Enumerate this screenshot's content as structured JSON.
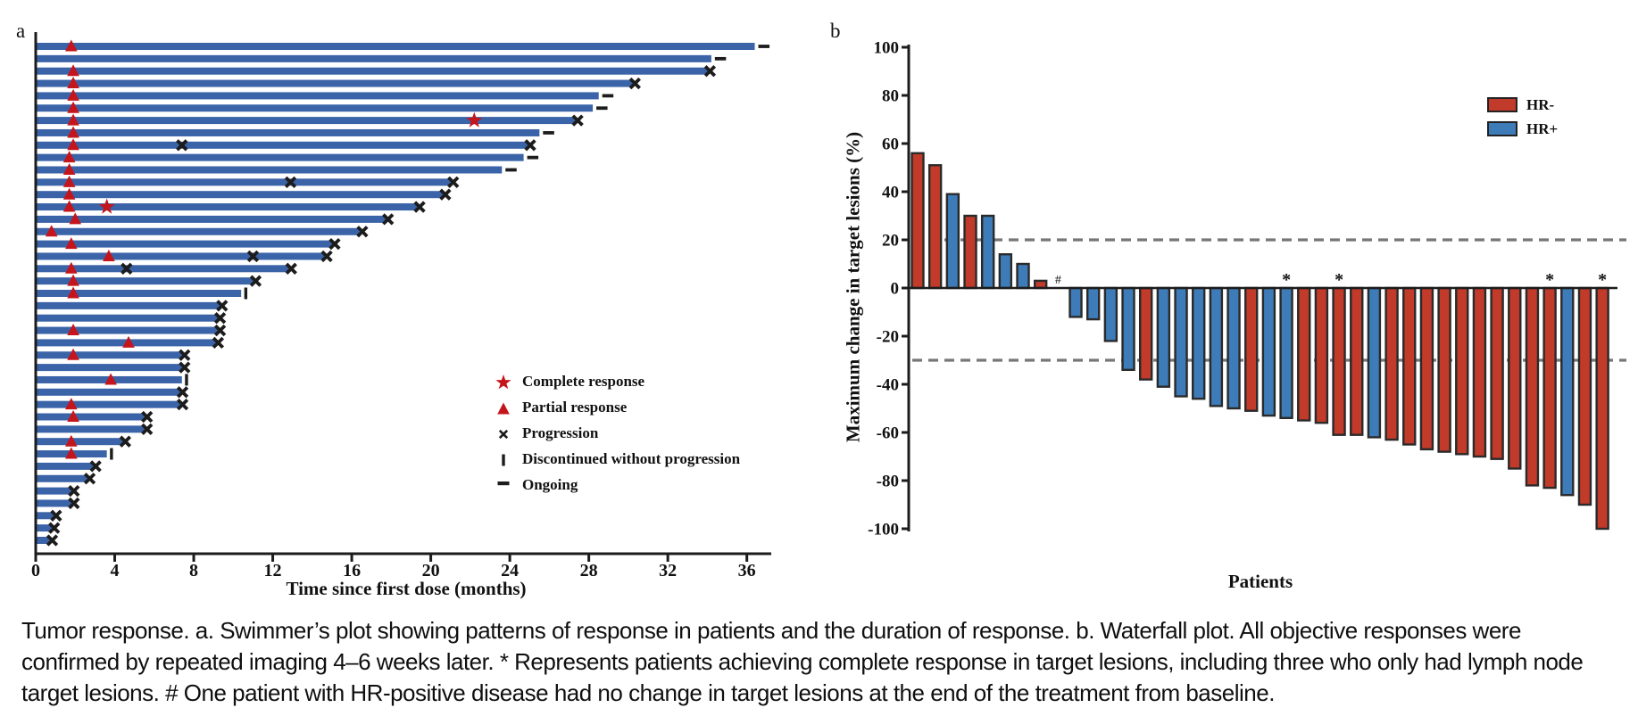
{
  "figure": {
    "panel_a_label": "a",
    "panel_b_label": "b"
  },
  "caption": "Tumor response. a. Swimmer’s plot showing patterns of response in patients and the duration of response. b. Waterfall plot. All objective responses were confirmed by repeated imaging 4–6 weeks later. * Represents patients achieving complete response in target lesions, including three who only had lymph node target lesions. # One patient with HR-positive disease had no change in target lesions at the end of the treatment from baseline.",
  "colors": {
    "swimmer_bar_blue": "#3a63a8",
    "waterfall_red": "#c13a2a",
    "waterfall_blue": "#3d7cb8",
    "marker_red": "#c4151c",
    "axis_black": "#1c1c1c",
    "bar_outline": "#2a2a2a",
    "dash_gray": "#777777"
  },
  "chart_data": [
    {
      "type": "bar",
      "subtype": "swimmer",
      "panel": "a",
      "xlabel": "Time since first dose (months)",
      "xlim": [
        0,
        37.2
      ],
      "xticks": [
        0,
        4,
        8,
        12,
        16,
        20,
        24,
        28,
        32,
        36
      ],
      "legend": [
        {
          "marker": "star",
          "label": "Complete response"
        },
        {
          "marker": "triangle",
          "label": "Partial response"
        },
        {
          "marker": "cross",
          "label": "Progression"
        },
        {
          "marker": "vbar",
          "label": "Discontinued without progression"
        },
        {
          "marker": "dash",
          "label": "Ongoing"
        }
      ],
      "patients": [
        {
          "duration_months": 36.4,
          "end_marker": "ongoing",
          "partial_response_month": 1.8
        },
        {
          "duration_months": 34.2,
          "end_marker": "ongoing"
        },
        {
          "duration_months": 34.0,
          "end_marker": "progression",
          "partial_response_month": 1.9
        },
        {
          "duration_months": 30.2,
          "end_marker": "progression",
          "partial_response_month": 1.9
        },
        {
          "duration_months": 28.5,
          "end_marker": "ongoing",
          "partial_response_month": 1.9
        },
        {
          "duration_months": 28.2,
          "end_marker": "ongoing",
          "partial_response_month": 1.9
        },
        {
          "duration_months": 27.3,
          "end_marker": "progression",
          "partial_response_month": 1.9,
          "complete_response_month": 22.2
        },
        {
          "duration_months": 25.5,
          "end_marker": "ongoing",
          "partial_response_month": 1.9
        },
        {
          "duration_months": 24.9,
          "end_marker": "progression",
          "partial_response_month": 1.9,
          "progression_marks": [
            7.4
          ]
        },
        {
          "duration_months": 24.7,
          "end_marker": "ongoing",
          "partial_response_month": 1.7
        },
        {
          "duration_months": 23.6,
          "end_marker": "ongoing",
          "partial_response_month": 1.7
        },
        {
          "duration_months": 21.0,
          "end_marker": "progression",
          "partial_response_month": 1.7,
          "progression_marks": [
            12.9
          ]
        },
        {
          "duration_months": 20.6,
          "end_marker": "progression",
          "partial_response_month": 1.7
        },
        {
          "duration_months": 19.3,
          "end_marker": "progression",
          "partial_response_month": 1.7,
          "complete_response_month": 3.6
        },
        {
          "duration_months": 17.7,
          "end_marker": "progression",
          "partial_response_month": 2.0
        },
        {
          "duration_months": 16.4,
          "end_marker": "progression",
          "partial_response_month": 0.8
        },
        {
          "duration_months": 15.0,
          "end_marker": "progression",
          "partial_response_month": 1.8
        },
        {
          "duration_months": 14.6,
          "end_marker": "progression",
          "partial_response_month": 3.7,
          "progression_marks": [
            11.0
          ]
        },
        {
          "duration_months": 12.8,
          "end_marker": "progression",
          "partial_response_month": 1.8,
          "progression_marks": [
            4.6
          ]
        },
        {
          "duration_months": 11.0,
          "end_marker": "progression",
          "partial_response_month": 1.9
        },
        {
          "duration_months": 10.4,
          "end_marker": "discontinued",
          "partial_response_month": 1.9
        },
        {
          "duration_months": 9.3,
          "end_marker": "progression"
        },
        {
          "duration_months": 9.2,
          "end_marker": "progression"
        },
        {
          "duration_months": 9.2,
          "end_marker": "progression",
          "partial_response_month": 1.9
        },
        {
          "duration_months": 9.1,
          "end_marker": "progression",
          "partial_response_month": 4.7
        },
        {
          "duration_months": 7.4,
          "end_marker": "progression",
          "partial_response_month": 1.9
        },
        {
          "duration_months": 7.4,
          "end_marker": "progression"
        },
        {
          "duration_months": 7.4,
          "end_marker": "discontinued",
          "partial_response_month": 3.8
        },
        {
          "duration_months": 7.3,
          "end_marker": "progression"
        },
        {
          "duration_months": 7.3,
          "end_marker": "progression",
          "partial_response_month": 1.8
        },
        {
          "duration_months": 5.5,
          "end_marker": "progression",
          "partial_response_month": 1.9
        },
        {
          "duration_months": 5.5,
          "end_marker": "progression"
        },
        {
          "duration_months": 4.4,
          "end_marker": "progression",
          "partial_response_month": 1.8
        },
        {
          "duration_months": 3.6,
          "end_marker": "discontinued",
          "partial_response_month": 1.8
        },
        {
          "duration_months": 2.9,
          "end_marker": "progression"
        },
        {
          "duration_months": 2.6,
          "end_marker": "progression"
        },
        {
          "duration_months": 1.8,
          "end_marker": "progression"
        },
        {
          "duration_months": 1.8,
          "end_marker": "progression"
        },
        {
          "duration_months": 0.9,
          "end_marker": "progression"
        },
        {
          "duration_months": 0.8,
          "end_marker": "progression"
        },
        {
          "duration_months": 0.7,
          "end_marker": "progression"
        }
      ]
    },
    {
      "type": "bar",
      "subtype": "waterfall",
      "panel": "b",
      "ylabel": "Maximum change in target lesions (%)",
      "xlabel": "Patients",
      "ylim": [
        -100,
        100
      ],
      "yticks": [
        100,
        80,
        60,
        40,
        20,
        0,
        -20,
        -40,
        -60,
        -80,
        -100
      ],
      "reference_lines": [
        20,
        -30
      ],
      "legend": [
        {
          "label": "HR-",
          "color_key": "waterfall_red"
        },
        {
          "label": "HR+",
          "color_key": "waterfall_blue"
        }
      ],
      "patients": [
        {
          "change_pct": 56,
          "group": "HR-"
        },
        {
          "change_pct": 51,
          "group": "HR-"
        },
        {
          "change_pct": 39,
          "group": "HR+"
        },
        {
          "change_pct": 30,
          "group": "HR-"
        },
        {
          "change_pct": 30,
          "group": "HR+"
        },
        {
          "change_pct": 14,
          "group": "HR+"
        },
        {
          "change_pct": 10,
          "group": "HR+"
        },
        {
          "change_pct": 3,
          "group": "HR-"
        },
        {
          "change_pct": 0,
          "group": "HR+",
          "annotation": "#"
        },
        {
          "change_pct": -12,
          "group": "HR+"
        },
        {
          "change_pct": -13,
          "group": "HR+"
        },
        {
          "change_pct": -22,
          "group": "HR+"
        },
        {
          "change_pct": -34,
          "group": "HR+"
        },
        {
          "change_pct": -38,
          "group": "HR-"
        },
        {
          "change_pct": -41,
          "group": "HR+"
        },
        {
          "change_pct": -45,
          "group": "HR+"
        },
        {
          "change_pct": -46,
          "group": "HR+"
        },
        {
          "change_pct": -49,
          "group": "HR+"
        },
        {
          "change_pct": -50,
          "group": "HR+"
        },
        {
          "change_pct": -51,
          "group": "HR-"
        },
        {
          "change_pct": -53,
          "group": "HR+"
        },
        {
          "change_pct": -54,
          "group": "HR+",
          "annotation": "*"
        },
        {
          "change_pct": -55,
          "group": "HR-"
        },
        {
          "change_pct": -56,
          "group": "HR-"
        },
        {
          "change_pct": -61,
          "group": "HR-",
          "annotation": "*"
        },
        {
          "change_pct": -61,
          "group": "HR-"
        },
        {
          "change_pct": -62,
          "group": "HR+"
        },
        {
          "change_pct": -63,
          "group": "HR-"
        },
        {
          "change_pct": -65,
          "group": "HR-"
        },
        {
          "change_pct": -67,
          "group": "HR-"
        },
        {
          "change_pct": -68,
          "group": "HR-"
        },
        {
          "change_pct": -69,
          "group": "HR-"
        },
        {
          "change_pct": -70,
          "group": "HR-"
        },
        {
          "change_pct": -71,
          "group": "HR-"
        },
        {
          "change_pct": -75,
          "group": "HR-"
        },
        {
          "change_pct": -82,
          "group": "HR-"
        },
        {
          "change_pct": -83,
          "group": "HR-",
          "annotation": "*"
        },
        {
          "change_pct": -86,
          "group": "HR+"
        },
        {
          "change_pct": -90,
          "group": "HR-"
        },
        {
          "change_pct": -100,
          "group": "HR-",
          "annotation": "*"
        }
      ]
    }
  ]
}
